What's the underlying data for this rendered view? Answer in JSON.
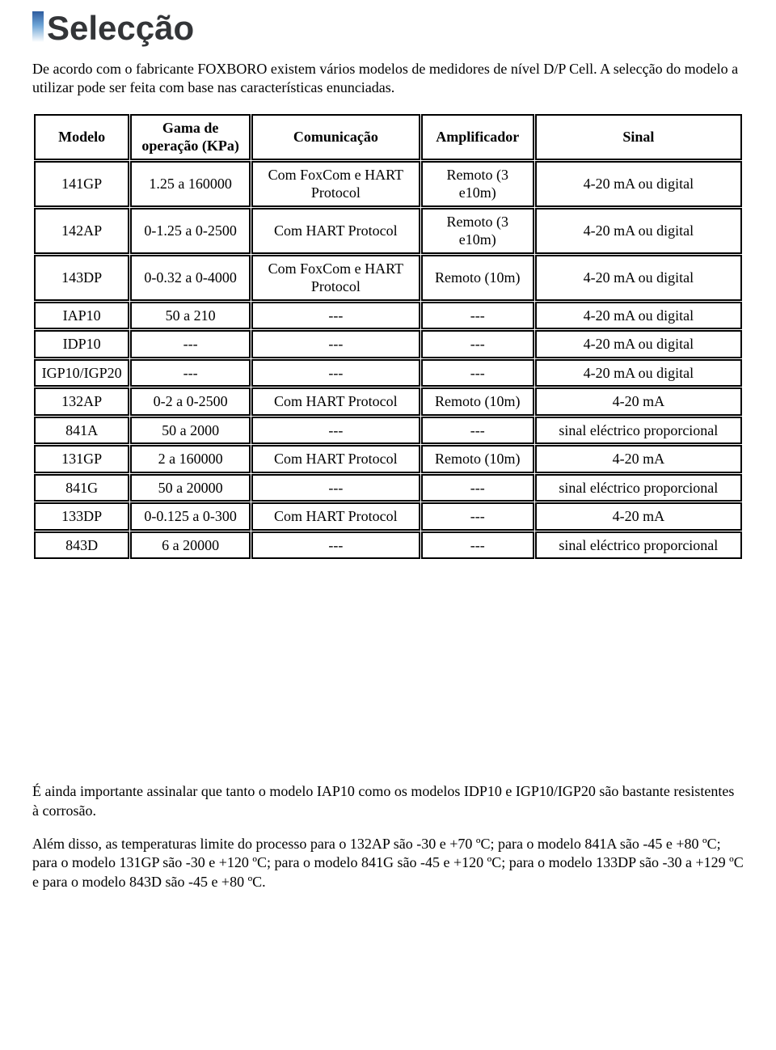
{
  "heading": "Selecção",
  "intro": "De acordo com o fabricante FOXBORO existem vários modelos de medidores de nível D/P Cell. A selecção do modelo a utilizar pode ser feita com base nas características enunciadas.",
  "table": {
    "columns": [
      "Modelo",
      "Gama de operação (KPa)",
      "Comunicação",
      "Amplificador",
      "Sinal"
    ],
    "rows": [
      [
        "141GP",
        "1.25 a 160000",
        "Com FoxCom e HART Protocol",
        "Remoto (3 e10m)",
        "4-20 mA ou digital"
      ],
      [
        "142AP",
        "0-1.25 a 0-2500",
        "Com HART Protocol",
        "Remoto (3 e10m)",
        "4-20 mA ou digital"
      ],
      [
        "143DP",
        "0-0.32 a 0-4000",
        "Com FoxCom e HART Protocol",
        "Remoto (10m)",
        "4-20 mA ou digital"
      ],
      [
        "IAP10",
        "50 a 210",
        "---",
        "---",
        "4-20 mA ou digital"
      ],
      [
        "IDP10",
        "---",
        "---",
        "---",
        "4-20 mA ou digital"
      ],
      [
        "IGP10/IGP20",
        "---",
        "---",
        "---",
        "4-20 mA ou digital"
      ],
      [
        "132AP",
        "0-2 a 0-2500",
        "Com HART Protocol",
        "Remoto (10m)",
        "4-20 mA"
      ],
      [
        "841A",
        "50 a 2000",
        "---",
        "---",
        "sinal eléctrico proporcional"
      ],
      [
        "131GP",
        "2 a 160000",
        "Com HART Protocol",
        "Remoto (10m)",
        "4-20 mA"
      ],
      [
        "841G",
        "50 a 20000",
        "---",
        "---",
        "sinal eléctrico proporcional"
      ],
      [
        "133DP",
        "0-0.125 a 0-300",
        "Com HART Protocol",
        "---",
        "4-20 mA"
      ],
      [
        "843D",
        "6 a 20000",
        "---",
        "---",
        "sinal eléctrico proporcional"
      ]
    ]
  },
  "outro1": "É ainda importante assinalar que tanto o modelo IAP10 como os modelos IDP10 e IGP10/IGP20 são bastante resistentes à corrosão.",
  "outro2": "Além disso, as temperaturas limite do processo para o 132AP são -30 e +70 ºC; para o modelo 841A são -45 e +80 ºC; para o modelo 131GP são -30 e +120 ºC; para o modelo 841G são -45 e +120 ºC; para o modelo 133DP são -30 a +129 ºC e para o modelo 843D são -45 e +80 ºC."
}
